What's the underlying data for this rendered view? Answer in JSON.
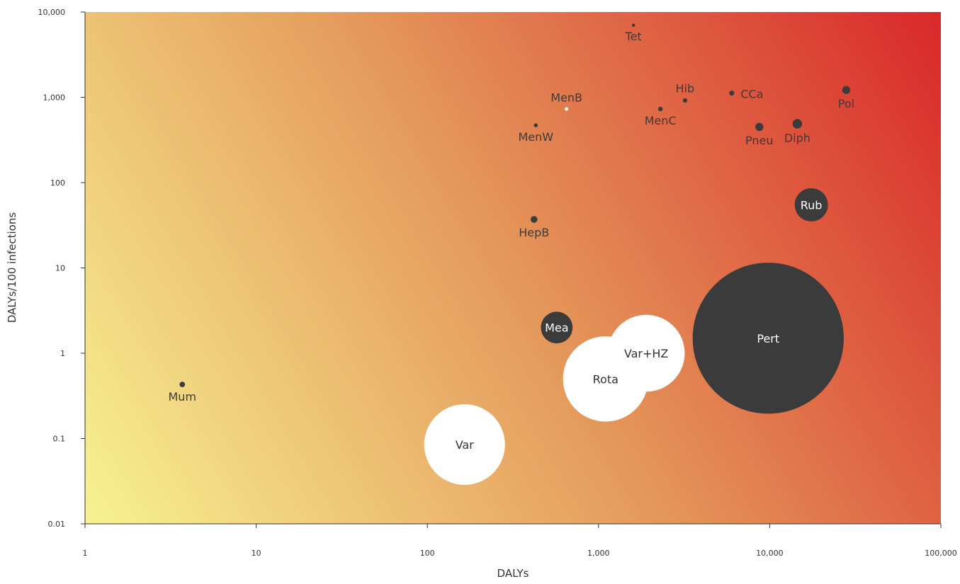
{
  "chart_data": {
    "type": "scatter",
    "xlabel": "DALYs",
    "ylabel": "DALYs/100 infections",
    "xscale": "log",
    "yscale": "log",
    "xlim": [
      1,
      100000
    ],
    "ylim": [
      0.01,
      10000
    ],
    "xticks": [
      {
        "value": 1,
        "label": "1"
      },
      {
        "value": 10,
        "label": "10"
      },
      {
        "value": 100,
        "label": "100"
      },
      {
        "value": 1000,
        "label": "1,000"
      },
      {
        "value": 10000,
        "label": "10,000"
      },
      {
        "value": 100000,
        "label": "100,000"
      }
    ],
    "yticks": [
      {
        "value": 0.01,
        "label": "0.01"
      },
      {
        "value": 0.1,
        "label": "0.1"
      },
      {
        "value": 1,
        "label": "1"
      },
      {
        "value": 10,
        "label": "10"
      },
      {
        "value": 100,
        "label": "100"
      },
      {
        "value": 1000,
        "label": "1,000"
      },
      {
        "value": 10000,
        "label": "10,000"
      }
    ],
    "grid": false,
    "background": "gradient from pale yellow (bottom-left) to red (top-right)",
    "colors": {
      "gradient_low": "#f7f292",
      "gradient_mid": "#e4975a",
      "gradient_high": "#d9282a",
      "dark_bubble": "#3b3b3b",
      "light_bubble": "#ffffff"
    },
    "points": [
      {
        "label": "Tet",
        "x": 1600,
        "y": 7000,
        "size": 0.2,
        "fill": "dark",
        "label_pos": "below"
      },
      {
        "label": "MenB",
        "x": 650,
        "y": 730,
        "size": 0.25,
        "fill": "light",
        "label_pos": "above"
      },
      {
        "label": "Hib",
        "x": 3200,
        "y": 920,
        "size": 0.4,
        "fill": "dark",
        "label_pos": "above"
      },
      {
        "label": "CCa",
        "x": 6000,
        "y": 1120,
        "size": 0.5,
        "fill": "dark",
        "label_pos": "right"
      },
      {
        "label": "Pol",
        "x": 28000,
        "y": 1220,
        "size": 1.3,
        "fill": "dark",
        "label_pos": "below"
      },
      {
        "label": "MenW",
        "x": 430,
        "y": 470,
        "size": 0.3,
        "fill": "dark",
        "label_pos": "below"
      },
      {
        "label": "MenC",
        "x": 2300,
        "y": 730,
        "size": 0.4,
        "fill": "dark",
        "label_pos": "below"
      },
      {
        "label": "Pneu",
        "x": 8700,
        "y": 450,
        "size": 1.3,
        "fill": "dark",
        "label_pos": "below"
      },
      {
        "label": "Diph",
        "x": 14500,
        "y": 490,
        "size": 1.8,
        "fill": "dark",
        "label_pos": "below"
      },
      {
        "label": "Rub",
        "x": 17500,
        "y": 55,
        "size": 22,
        "fill": "dark",
        "label_pos": "center"
      },
      {
        "label": "HepB",
        "x": 420,
        "y": 37,
        "size": 0.9,
        "fill": "dark",
        "label_pos": "below"
      },
      {
        "label": "Mea",
        "x": 570,
        "y": 2,
        "size": 20,
        "fill": "dark",
        "label_pos": "center"
      },
      {
        "label": "Var+HZ",
        "x": 1900,
        "y": 1,
        "size": 118,
        "fill": "light",
        "label_pos": "center"
      },
      {
        "label": "Rota",
        "x": 1100,
        "y": 0.5,
        "size": 145,
        "fill": "light",
        "label_pos": "center"
      },
      {
        "label": "Pert",
        "x": 9800,
        "y": 1.5,
        "size": 455,
        "fill": "dark",
        "label_pos": "center"
      },
      {
        "label": "Mum",
        "x": 3.7,
        "y": 0.43,
        "size": 0.6,
        "fill": "dark",
        "label_pos": "below"
      },
      {
        "label": "Var",
        "x": 165,
        "y": 0.085,
        "size": 130,
        "fill": "light",
        "label_pos": "center"
      }
    ]
  }
}
